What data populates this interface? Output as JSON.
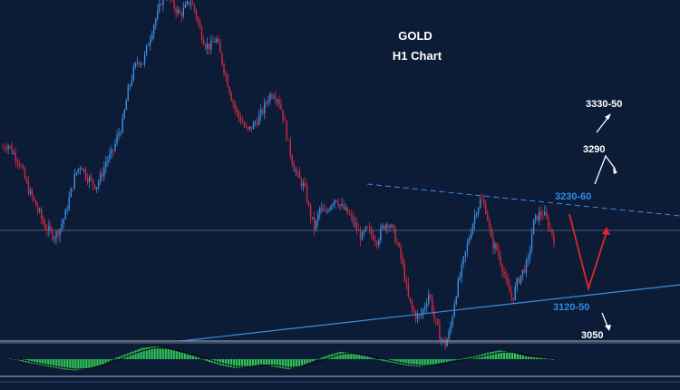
{
  "chart_data": {
    "type": "candlestick",
    "title": "GOLD",
    "subtitle": "H1 Chart",
    "colors": {
      "background": "#0c1c36",
      "bull": "#3d8fe0",
      "bear": "#d22a3c",
      "trendline": "#3a8ce0",
      "projection_red": "#e0242c",
      "projection_white": "#ffffff",
      "level_blue": "#2f8be8",
      "level_white": "#ffffff",
      "histogram": "#2fc25a"
    },
    "price_path": [
      3287,
      3290,
      3282,
      3276,
      3262,
      3248,
      3238,
      3228,
      3216,
      3211,
      3207,
      3214,
      3226,
      3245,
      3263,
      3272,
      3262,
      3256,
      3252,
      3262,
      3276,
      3281,
      3296,
      3308,
      3336,
      3354,
      3366,
      3364,
      3382,
      3398,
      3410,
      3429,
      3423,
      3414,
      3407,
      3412,
      3420,
      3410,
      3392,
      3380,
      3378,
      3386,
      3368,
      3350,
      3332,
      3318,
      3310,
      3301,
      3306,
      3312,
      3320,
      3332,
      3337,
      3331,
      3314,
      3288,
      3269,
      3258,
      3251,
      3229,
      3213,
      3232,
      3226,
      3236,
      3242,
      3234,
      3229,
      3223,
      3214,
      3205,
      3213,
      3208,
      3203,
      3214,
      3220,
      3212,
      3198,
      3178,
      3150,
      3138,
      3132,
      3142,
      3156,
      3132,
      3118,
      3108,
      3121,
      3152,
      3172,
      3192,
      3212,
      3230,
      3240,
      3230,
      3201,
      3195,
      3180,
      3161,
      3150,
      3166,
      3175,
      3183,
      3218,
      3226,
      3228,
      3216,
      3205
    ],
    "annotations": {
      "level_3330_50": "3330-50",
      "level_3290": "3290",
      "level_3230_60": "3230-60",
      "level_3120_50": "3120-50",
      "level_3050": "3050"
    },
    "oscillator": {
      "type": "histogram",
      "values": [
        0.1,
        -0.2,
        -0.4,
        -0.6,
        -0.8,
        -0.9,
        -0.7,
        -0.4,
        0.1,
        0.5,
        0.9,
        1.0,
        0.8,
        0.5,
        0.2,
        -0.2,
        -0.5,
        -0.7,
        -0.6,
        -0.4,
        -0.6,
        -0.8,
        -0.5,
        -0.1,
        0.3,
        0.6,
        0.4,
        0.2,
        -0.1,
        -0.3,
        -0.5,
        -0.6,
        -0.4,
        -0.2,
        0.0,
        0.2,
        0.5,
        0.7,
        0.5,
        0.2,
        0.1,
        0.0
      ]
    }
  }
}
